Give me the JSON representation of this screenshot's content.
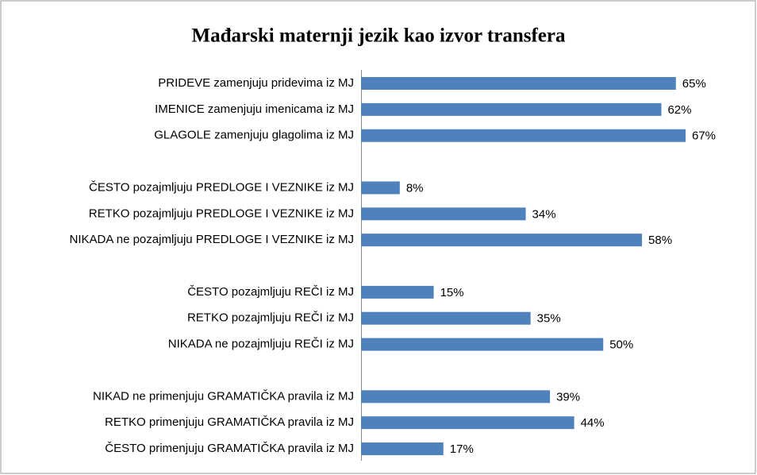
{
  "chart_data": {
    "type": "bar",
    "orientation": "horizontal",
    "title": "Mađarski maternji jezik kao izvor transfera",
    "categories": [
      "PRIDEVE zamenjuju pridevima iz MJ",
      "IMENICE  zamenjuju imenicama iz MJ",
      "GLAGOLE  zamenjuju glagolima iz MJ",
      null,
      "ČESTO pozajmljuju PREDLOGE I VEZNIKE iz MJ",
      "RETKO pozajmljuju PREDLOGE I VEZNIKE iz MJ",
      "NIKADA ne pozajmljuju PREDLOGE I VEZNIKE iz MJ",
      null,
      "ČESTO pozajmljuju REČI iz MJ",
      "RETKO pozajmljuju REČI iz MJ",
      "NIKADA ne pozajmljuju REČI iz MJ",
      null,
      "NIKAD ne primenjuju GRAMATIČKA pravila iz MJ",
      "RETKO primenjuju GRAMATIČKA pravila iz MJ",
      "ČESTO primenjuju GRAMATIČKA pravila iz MJ"
    ],
    "values": [
      65,
      62,
      67,
      null,
      8,
      34,
      58,
      null,
      15,
      35,
      50,
      null,
      39,
      44,
      17
    ],
    "value_labels": [
      "65%",
      "62%",
      "67%",
      null,
      "8%",
      "34%",
      "58%",
      null,
      "15%",
      "35%",
      "50%",
      null,
      "39%",
      "44%",
      "17%"
    ],
    "color": "#4f81bd"
  }
}
